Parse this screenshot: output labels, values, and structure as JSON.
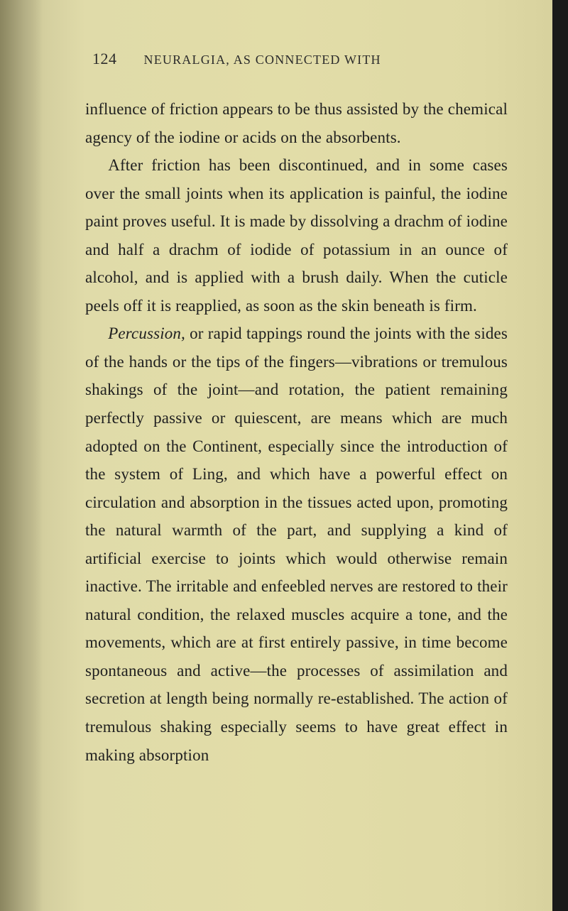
{
  "page": {
    "number": "124",
    "running_head": "NEURALGIA, AS CONNECTED WITH",
    "background_color": "#e0dba9",
    "edge_shadow_color": "#1a1a1a",
    "text_color": "#202020",
    "font_family": "Times New Roman",
    "body_font_size_pt": 17,
    "line_height": 1.72,
    "paragraphs": [
      "influence of friction appears to be thus assisted by the chemical agency of the iodine or acids on the absorbents.",
      "After friction has been discontinued, and in some cases over the small joints when its application is painful, the iodine paint proves useful. It is made by dissolving a drachm of iodine and half a drachm of iodide of potassium in an ounce of alcohol, and is applied with a brush daily. When the cuticle peels off it is reapplied, as soon as the skin beneath is firm.",
      "Percussion, or rapid tappings round the joints with the sides of the hands or the tips of the fingers—vibrations or tremulous shakings of the joint—and rotation, the patient remaining perfectly passive or quiescent, are means which are much adopted on the Continent, especially since the introduction of the system of Ling, and which have a powerful effect on circulation and absorption in the tissues acted upon, promoting the natural warmth of the part, and supplying a kind of artificial exercise to joints which would otherwise remain inactive. The irritable and enfeebled nerves are restored to their natural condition, the relaxed muscles acquire a tone, and the movements, which are at first entirely passive, in time become spontaneous and active—the processes of assimilation and secretion at length being normally re-established. The action of tremulous shaking especially seems to have great effect in making absorption"
    ],
    "italic_word_p3": "Percussion,"
  }
}
